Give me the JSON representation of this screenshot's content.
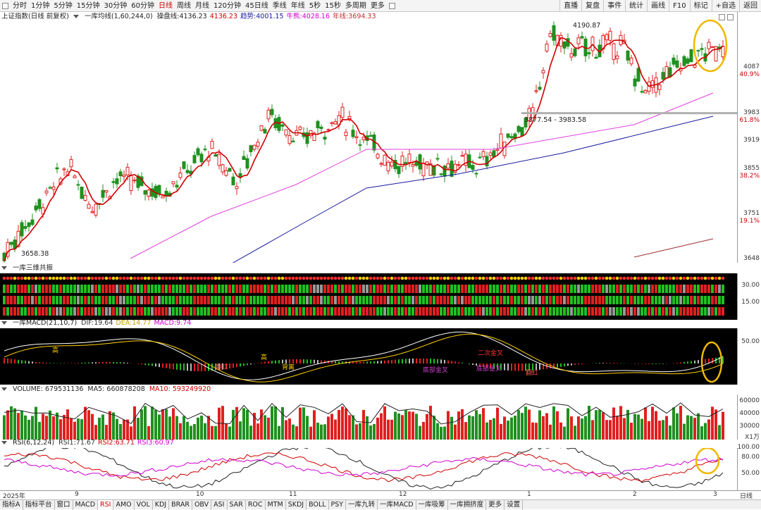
{
  "toolbar": {
    "periods": [
      "分时",
      "1分钟",
      "5分钟",
      "15分钟",
      "30分钟",
      "60分钟",
      "日线",
      "周线",
      "月线",
      "120分钟",
      "45日线",
      "季线",
      "年线",
      "5秒",
      "15秒",
      "多周期",
      "更多"
    ],
    "active_period": "日线",
    "right_buttons": [
      "直播",
      "复盘",
      "事件",
      "统计",
      "画线",
      "F10",
      "标记",
      "+自选",
      "返回"
    ]
  },
  "main_chart": {
    "title": "上证指数(日线 前复权)",
    "ma_name": "一库均线(1,60,244,0)",
    "indicators": [
      {
        "label": "操盘线:",
        "value": "4136.23",
        "color": "#222222"
      },
      {
        "label": "",
        "value": "4136.23",
        "color": "#d00000"
      },
      {
        "label": "趋势:",
        "value": "4001.15",
        "color": "#1a1aa0"
      },
      {
        "label": "牛熊:",
        "value": "4028.16",
        "color": "#d000d0"
      },
      {
        "label": "年线:",
        "value": "3694.33",
        "color": "#c03030"
      }
    ],
    "annotations": {
      "high": "4190.87",
      "low": "3658.38",
      "range": "3877.54 - 3983.58"
    },
    "y_ticks": [
      {
        "value": "4087",
        "pct": "40.9%",
        "price": 4087
      },
      {
        "value": "3983",
        "pct": "61.8%",
        "price": 3983
      },
      {
        "value": "3919",
        "pct": "",
        "price": 3919
      },
      {
        "value": "3855",
        "pct": "38.2%",
        "price": 3855
      },
      {
        "value": "3751",
        "pct": "19.1%",
        "price": 3751
      },
      {
        "value": "3648",
        "pct": "",
        "price": 3648
      }
    ]
  },
  "resonance": {
    "title": "一库三维共振",
    "y_ticks": [
      "30.00",
      "15.00"
    ]
  },
  "macd": {
    "title": "一库MACD(21,10,7)",
    "values": [
      {
        "label": "DIF:",
        "value": "19.64",
        "color": "#333333"
      },
      {
        "label": "DEA:",
        "value": "14.77",
        "color": "#c8a000"
      },
      {
        "label": "MACD:",
        "value": "9.74",
        "color": "#d000d0"
      }
    ],
    "y_ticks": [
      "50.00"
    ],
    "labels": [
      "高",
      "高",
      "背离",
      "翻红",
      "二次金叉",
      "底部金叉",
      "底部金叉",
      "翻红"
    ]
  },
  "volume": {
    "title": "VOLUME:",
    "value": "679531136",
    "ma5_label": "MA5:",
    "ma5": "660878208",
    "ma10_label": "MA10:",
    "ma10": "593249920",
    "y_ticks": [
      "60000",
      "40000",
      "30000"
    ],
    "unit": "X1万"
  },
  "rsi": {
    "title": "RSI(6,12,24)",
    "values": [
      {
        "label": "RSI1:",
        "value": "71.67",
        "color": "#333333"
      },
      {
        "label": "RSI2:",
        "value": "63.71",
        "color": "#d00000"
      },
      {
        "label": "RSI3:",
        "value": "60.97",
        "color": "#d000d0"
      }
    ],
    "y_ticks": [
      "100.00",
      "80.00",
      "50.00"
    ]
  },
  "date_axis": {
    "labels": [
      "2025年",
      "9",
      "10",
      "11",
      "12",
      "1",
      "2",
      "3"
    ],
    "corner": "日线"
  },
  "tabs": [
    "指标A",
    "指标平台",
    "窗口",
    "MACD",
    "RSI",
    "AMO",
    "VOL",
    "KDJ",
    "BRAR",
    "OBV",
    "ASI",
    "SAR",
    "ROC",
    "MTM",
    "SKDJ",
    "BOLL",
    "PSY",
    "一库九转",
    "一库MACD",
    "一库吸筹",
    "一库拥挤度",
    "更多",
    "设置"
  ],
  "active_tab": "RSI",
  "colors": {
    "up": "#e02020",
    "down": "#209020",
    "ma_line": "#d00000",
    "trend": "#1a1aa0",
    "bull_bear": "#e040e0",
    "highlight": "#f0b800"
  }
}
